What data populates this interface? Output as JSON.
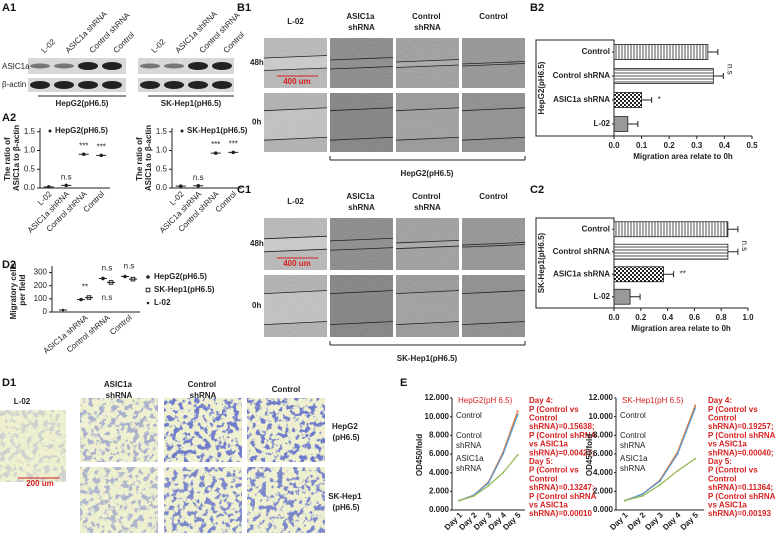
{
  "A1": {
    "label": "A1",
    "lanes": [
      "L-02",
      "ASIC1a shRNA",
      "Control shRNA",
      "Control"
    ],
    "rows": [
      "ASIC1a",
      "β-actin"
    ],
    "groups": [
      "HepG2(pH6.5)",
      "SK-Hep1(pH6.5)"
    ]
  },
  "A2": {
    "label": "A2",
    "charts": [
      {
        "type": "scatter",
        "legend": "HepG2(pH6.5)",
        "ylabel": "The ratio of ASIC1a to β-actin",
        "categories": [
          "L-02",
          "ASIC1a shRNA",
          "Control shRNA",
          "Control"
        ],
        "values": [
          0.03,
          0.07,
          0.9,
          0.87
        ],
        "ylim": [
          0,
          1.6
        ],
        "yticks": [
          {
            "value": 0,
            "label": "0.0"
          },
          0.5,
          {
            "value": 1,
            "label": "1.0"
          },
          1.5
        ],
        "annotations": [
          null,
          "n.s",
          "***",
          "***"
        ]
      },
      {
        "type": "scatter",
        "legend": "SK-Hep1(pH6.5)",
        "ylabel": "The ratio of ASIC1a to β-actin",
        "categories": [
          "L-02",
          "ASIC1a shRNA",
          "Control shRNA",
          "Control"
        ],
        "values": [
          0.05,
          0.06,
          0.93,
          0.95
        ],
        "ylim": [
          0,
          1.6
        ],
        "yticks": [
          {
            "value": 0,
            "label": "0.0"
          },
          0.5,
          {
            "value": 1,
            "label": "1.0"
          },
          1.5
        ],
        "annotations": [
          null,
          "n.s",
          "***",
          "***"
        ]
      }
    ]
  },
  "D2": {
    "label": "D2",
    "chart": {
      "type": "scatter",
      "ylabel": "Migratory cells per field",
      "categories": [
        null,
        "ASIC1a shRNA",
        "Control shRNA",
        "Control"
      ],
      "series": [
        {
          "name": "HepG2(pH6.5)",
          "values": [
            null,
            95,
            255,
            270
          ]
        },
        {
          "name": "SK-Hep1(pH6.5)",
          "values": [
            null,
            110,
            225,
            250
          ]
        },
        {
          "name": "L-02",
          "values": [
            15,
            null,
            null,
            null
          ]
        }
      ],
      "ylim": [
        0,
        350
      ],
      "yticks": [
        0,
        100,
        200,
        300
      ],
      "annotations": [
        null,
        "**",
        "n.s",
        "n.s"
      ],
      "annotations_lower": [
        null,
        null,
        "n.s",
        null
      ]
    }
  },
  "B1": {
    "label": "B1",
    "columns": [
      "L-02",
      "ASIC1a shRNA",
      "Control shRNA",
      "Control"
    ],
    "rows": [
      "48h",
      "0h"
    ],
    "scale": "400 um",
    "group": "HepG2(pH6.5)"
  },
  "B2": {
    "label": "B2",
    "chart": {
      "type": "bar",
      "ylabel": "HepG2(pH6.5)",
      "xlabel": "Migration area relate to 0h",
      "categories": [
        "Control",
        "Control shRNA",
        "ASIC1a shRNA",
        "L-02"
      ],
      "values": [
        0.34,
        0.36,
        0.1,
        0.05
      ],
      "xlim": [
        0,
        0.5
      ],
      "xticks": [
        {
          "value": 0,
          "label": "0.0"
        },
        0.1,
        0.2,
        0.3,
        0.4,
        0.5
      ],
      "annotations": [
        null,
        "n.s",
        "*",
        null
      ]
    }
  },
  "C1": {
    "label": "C1",
    "columns": [
      "L-02",
      "ASIC1a shRNA",
      "Control shRNA",
      "Control"
    ],
    "rows": [
      "48h",
      "0h"
    ],
    "scale": "400 um",
    "group": "SK-Hep1(pH6.5)"
  },
  "C2": {
    "label": "C2",
    "chart": {
      "type": "bar",
      "ylabel": "SK-Hep1(pH6.5)",
      "xlabel": "Migration area relate to 0h",
      "categories": [
        "Control",
        "Control shRNA",
        "ASIC1a shRNA",
        "L-02"
      ],
      "values": [
        0.85,
        0.85,
        0.37,
        0.12
      ],
      "xlim": [
        0,
        1
      ],
      "xticks": [
        {
          "value": 0,
          "label": "0.0"
        },
        0.2,
        0.4,
        0.6,
        0.8,
        {
          "value": 1,
          "label": "1.0"
        }
      ],
      "annotations": [
        null,
        "n.s",
        "**",
        null
      ]
    }
  },
  "D1": {
    "label": "D1",
    "columns": [
      "L-02",
      "ASIC1a shRNA",
      "Control shRNA",
      "Control"
    ],
    "rows": [
      "HepG2 (pH6.5)",
      "SK-Hep1 (pH6.5)"
    ],
    "scale": "200 um"
  },
  "E": {
    "label": "E",
    "charts": [
      {
        "type": "line",
        "title": "HepG2(pH 6.5)",
        "ylabel": "OD450/fold",
        "categories": [
          "Day 1",
          "Day 2",
          "Day 3",
          "Day 4",
          "Day 5"
        ],
        "ylim": [
          0,
          12
        ],
        "yticks": [
          {
            "value": 0,
            "label": "0.000"
          },
          {
            "value": 2,
            "label": "2.000"
          },
          {
            "value": 4,
            "label": "4.000"
          },
          {
            "value": 6,
            "label": "6.000"
          },
          {
            "value": 8,
            "label": "8.000"
          },
          {
            "value": 10,
            "label": "10.000"
          },
          {
            "value": 12,
            "label": "12.000"
          }
        ],
        "series": [
          {
            "name": "Control",
            "color": "#e8772e",
            "values": [
              1,
              1.6,
              3.0,
              6.2,
              10.6
            ]
          },
          {
            "name": "Control shRNA",
            "color": "#5b9bd5",
            "values": [
              1,
              1.6,
              2.9,
              6.0,
              10.2
            ]
          },
          {
            "name": "ASIC1a shRNA",
            "color": "#9bbb59",
            "values": [
              1,
              1.5,
              2.6,
              4.0,
              5.9
            ]
          }
        ],
        "note": [
          "Day 4:",
          "P (Control vs",
          "Control",
          "shRNA)=0.15638;",
          "P (Control shRNA",
          "vs ASIC1a",
          "shRNA)=0.00427;",
          "Day 5:",
          "P (Control vs",
          "Control",
          "shRNA)=0.13247;",
          "P (Control shRNA",
          "vs ASIC1a",
          "shRNA)=0.00010"
        ]
      },
      {
        "type": "line",
        "title": "SK-Hep1(pH 6.5)",
        "ylabel": "OD450/fold",
        "categories": [
          "Day 1",
          "Day 2",
          "Day 3",
          "Day 4",
          "Day 5"
        ],
        "ylim": [
          0,
          12
        ],
        "yticks": [
          {
            "value": 0,
            "label": "0.000"
          },
          {
            "value": 2,
            "label": "2.000"
          },
          {
            "value": 4,
            "label": "4.000"
          },
          {
            "value": 6,
            "label": "6.000"
          },
          {
            "value": 8,
            "label": "8.000"
          },
          {
            "value": 10,
            "label": "10.000"
          },
          {
            "value": 12,
            "label": "12.000"
          }
        ],
        "series": [
          {
            "name": "Control",
            "color": "#e8772e",
            "values": [
              1,
              1.7,
              3.2,
              6.2,
              11.2
            ]
          },
          {
            "name": "Control shRNA",
            "color": "#5b9bd5",
            "values": [
              1,
              1.7,
              3.1,
              6.0,
              10.9
            ]
          },
          {
            "name": "ASIC1a shRNA",
            "color": "#9bbb59",
            "values": [
              1,
              1.5,
              2.7,
              4.2,
              5.5
            ]
          }
        ],
        "note": [
          "Day 4:",
          "P (Control vs",
          "Control",
          "shRNA)=0.19257;",
          "P (Control shRNA",
          "vs ASIC1a",
          "shRNA)=0.00040;",
          "Day 5:",
          "P (Control vs",
          "Control",
          "shRNA)=0.11364;",
          "P (Control shRNA",
          "vs ASIC1a",
          "shRNA)=0.00193"
        ]
      }
    ]
  }
}
